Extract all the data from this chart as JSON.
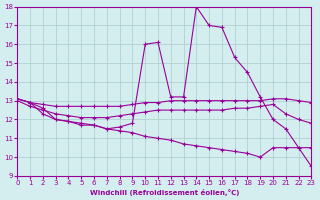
{
  "xlabel": "Windchill (Refroidissement éolien,°C)",
  "bg_color": "#d4eef0",
  "line_color": "#990099",
  "grid_color": "#aacccc",
  "xlim": [
    0,
    23
  ],
  "ylim": [
    9,
    18
  ],
  "xticks": [
    0,
    1,
    2,
    3,
    4,
    5,
    6,
    7,
    8,
    9,
    10,
    11,
    12,
    13,
    14,
    15,
    16,
    17,
    18,
    19,
    20,
    21,
    22,
    23
  ],
  "yticks": [
    9,
    10,
    11,
    12,
    13,
    14,
    15,
    16,
    17,
    18
  ],
  "lines": [
    {
      "x": [
        0,
        1,
        2,
        3,
        4,
        5,
        6,
        7,
        8,
        9,
        10,
        11,
        12,
        13,
        14,
        15,
        16,
        17,
        18,
        19,
        20,
        21,
        22,
        23
      ],
      "y": [
        13.1,
        12.9,
        12.6,
        12.0,
        11.9,
        11.8,
        11.7,
        11.5,
        11.6,
        11.8,
        16.0,
        16.1,
        13.2,
        13.2,
        18.0,
        17.0,
        16.9,
        15.3,
        14.5,
        13.2,
        12.0,
        11.5,
        10.5,
        10.5
      ]
    },
    {
      "x": [
        0,
        1,
        2,
        3,
        4,
        5,
        6,
        7,
        8,
        9,
        10,
        11,
        12,
        13,
        14,
        15,
        16,
        17,
        18,
        19,
        20,
        21,
        22,
        23
      ],
      "y": [
        13.1,
        12.9,
        12.8,
        12.7,
        12.7,
        12.7,
        12.7,
        12.7,
        12.7,
        12.8,
        12.9,
        12.9,
        13.0,
        13.0,
        13.0,
        13.0,
        13.0,
        13.0,
        13.0,
        13.0,
        13.1,
        13.1,
        13.0,
        12.9
      ]
    },
    {
      "x": [
        0,
        1,
        2,
        3,
        4,
        5,
        6,
        7,
        8,
        9,
        10,
        11,
        12,
        13,
        14,
        15,
        16,
        17,
        18,
        19,
        20,
        21,
        22,
        23
      ],
      "y": [
        13.0,
        12.7,
        12.5,
        12.3,
        12.2,
        12.1,
        12.1,
        12.1,
        12.2,
        12.3,
        12.4,
        12.5,
        12.5,
        12.5,
        12.5,
        12.5,
        12.5,
        12.6,
        12.6,
        12.7,
        12.8,
        12.3,
        12.0,
        11.8
      ]
    },
    {
      "x": [
        0,
        1,
        2,
        3,
        4,
        5,
        6,
        7,
        8,
        9,
        10,
        11,
        12,
        13,
        14,
        15,
        16,
        17,
        18,
        19,
        20,
        21,
        22,
        23
      ],
      "y": [
        13.1,
        12.9,
        12.3,
        12.0,
        11.9,
        11.7,
        11.7,
        11.5,
        11.4,
        11.3,
        11.1,
        11.0,
        10.9,
        10.7,
        10.6,
        10.5,
        10.4,
        10.3,
        10.2,
        10.0,
        10.5,
        10.5,
        10.5,
        9.5
      ]
    }
  ]
}
